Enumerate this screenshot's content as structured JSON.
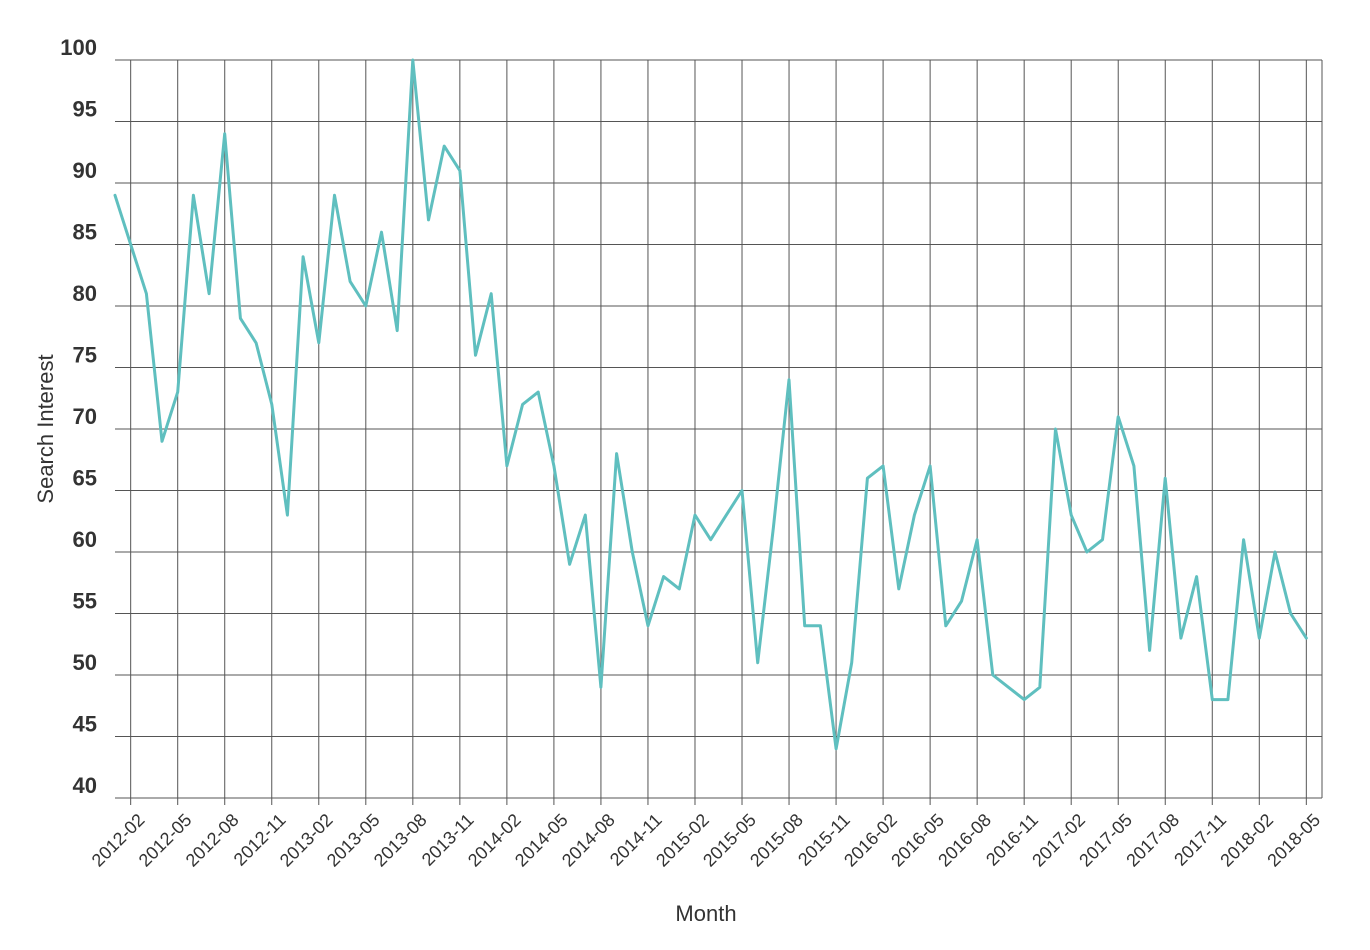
{
  "chart_data": {
    "type": "line",
    "title": "",
    "xlabel": "Month",
    "ylabel": "Search Interest",
    "ylim": [
      40,
      100
    ],
    "yticks": [
      40,
      45,
      50,
      55,
      60,
      65,
      70,
      75,
      80,
      85,
      90,
      95,
      100
    ],
    "grid": true,
    "legend": "none",
    "x_start": "2012-01",
    "x_end": "2018-06",
    "xtick_labels": [
      "2012-02",
      "2012-05",
      "2012-08",
      "2012-11",
      "2013-02",
      "2013-05",
      "2013-08",
      "2013-11",
      "2014-02",
      "2014-05",
      "2014-08",
      "2014-11",
      "2015-02",
      "2015-05",
      "2015-08",
      "2015-11",
      "2016-02",
      "2016-05",
      "2016-08",
      "2016-11",
      "2017-02",
      "2017-05",
      "2017-08",
      "2017-11",
      "2018-02",
      "2018-05"
    ],
    "line_color": "#5fbfbf",
    "series": [
      {
        "x": [
          "2012-01",
          "2012-02",
          "2012-03",
          "2012-04",
          "2012-05",
          "2012-06",
          "2012-07",
          "2012-08",
          "2012-09",
          "2012-10",
          "2012-11",
          "2012-12",
          "2013-01",
          "2013-02",
          "2013-03",
          "2013-04",
          "2013-05",
          "2013-06",
          "2013-07",
          "2013-08",
          "2013-09",
          "2013-10",
          "2013-11",
          "2013-12",
          "2014-01",
          "2014-02",
          "2014-03",
          "2014-04",
          "2014-05",
          "2014-06",
          "2014-07",
          "2014-08",
          "2014-09",
          "2014-10",
          "2014-11",
          "2014-12",
          "2015-01",
          "2015-02",
          "2015-03",
          "2015-04",
          "2015-05",
          "2015-06",
          "2015-07",
          "2015-08",
          "2015-09",
          "2015-10",
          "2015-11",
          "2015-12",
          "2016-01",
          "2016-02",
          "2016-03",
          "2016-04",
          "2016-05",
          "2016-06",
          "2016-07",
          "2016-08",
          "2016-09",
          "2016-10",
          "2016-11",
          "2016-12",
          "2017-01",
          "2017-02",
          "2017-03",
          "2017-04",
          "2017-05",
          "2017-06",
          "2017-07",
          "2017-08",
          "2017-09",
          "2017-10",
          "2017-11",
          "2017-12",
          "2018-01",
          "2018-02",
          "2018-03",
          "2018-04",
          "2018-05"
        ],
        "values": [
          89,
          85,
          81,
          69,
          73,
          89,
          81,
          94,
          79,
          77,
          72,
          63,
          84,
          77,
          89,
          82,
          80,
          86,
          78,
          100,
          87,
          93,
          91,
          76,
          81,
          67,
          72,
          73,
          67,
          59,
          63,
          49,
          68,
          60,
          54,
          58,
          57,
          63,
          61,
          63,
          65,
          51,
          62,
          74,
          54,
          54,
          44,
          51,
          66,
          67,
          57,
          63,
          67,
          54,
          56,
          61,
          50,
          49,
          48,
          49,
          70,
          63,
          60,
          61,
          71,
          67,
          52,
          66,
          53,
          58,
          48,
          48,
          61,
          53,
          60,
          55,
          53
        ]
      }
    ]
  }
}
